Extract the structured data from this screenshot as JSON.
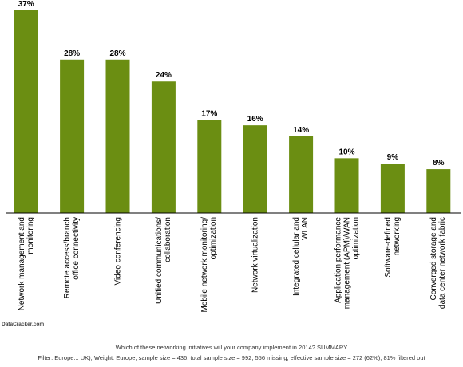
{
  "chart_data": {
    "type": "bar",
    "categories": [
      "Network management and monitoring",
      "Remote access/branch office connectivity",
      "Video conferencing",
      "Unified communications/ collaboration",
      "Mobile network monitoring/ optimization",
      "Network virtualization",
      "Integrated cellular and WLAN",
      "Application performance management (APM)/WAN optimization",
      "Software-defined networking",
      "Converged storage and data center network fabric"
    ],
    "values": [
      37,
      28,
      28,
      24,
      17,
      16,
      14,
      10,
      9,
      8
    ],
    "value_labels": [
      "37%",
      "28%",
      "28%",
      "24%",
      "17%",
      "16%",
      "14%",
      "10%",
      "9%",
      "8%"
    ],
    "color": "#6b8e12",
    "source": "DataCracker.com",
    "question": "Which of these networking initiatives will your company implement in 2014? SUMMARY",
    "filter_note": "Filter: Europe... UK); Weight: Europe, sample size = 436; total sample size = 992; 556 missing; effective sample size = 272 (62%); 81% filtered out"
  }
}
